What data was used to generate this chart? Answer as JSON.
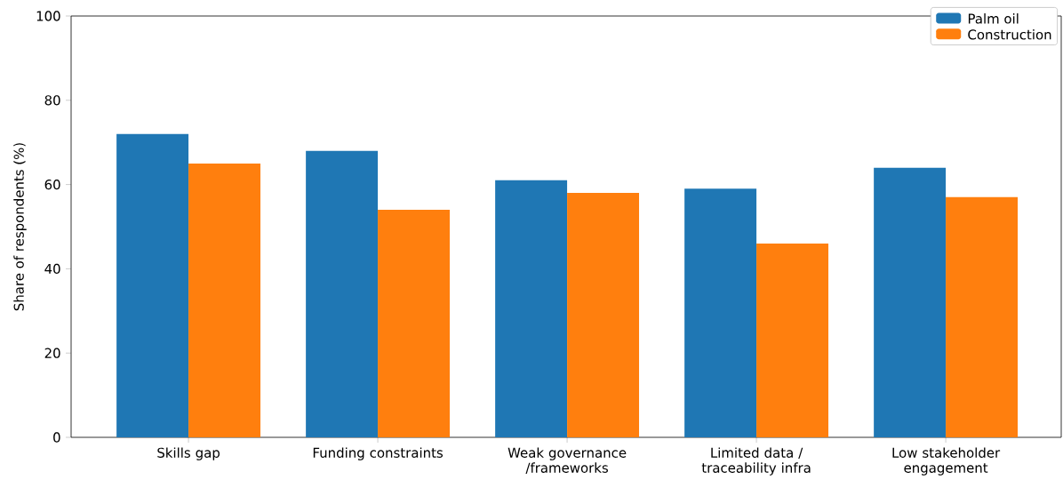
{
  "chart_data": {
    "type": "bar",
    "ylabel": "Share of respondents (%)",
    "categories": [
      "Skills gap",
      "Funding constraints",
      "Weak governance /frameworks",
      "Limited data / traceability infra",
      "Low stakeholder engagement"
    ],
    "series": [
      {
        "name": "Palm oil",
        "color": "#1f77b4",
        "values": [
          72,
          68,
          61,
          59,
          64
        ]
      },
      {
        "name": "Construction",
        "color": "#ff7f0e",
        "values": [
          65,
          54,
          58,
          46,
          57
        ]
      }
    ],
    "ylim": [
      0,
      100
    ],
    "yticks": [
      0,
      20,
      40,
      60,
      80,
      100
    ],
    "legend": "top right"
  }
}
